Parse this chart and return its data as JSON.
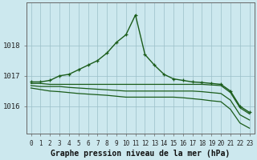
{
  "hours": [
    0,
    1,
    2,
    3,
    4,
    5,
    6,
    7,
    8,
    9,
    10,
    11,
    12,
    13,
    14,
    15,
    16,
    17,
    18,
    19,
    20,
    21,
    22,
    23
  ],
  "line_main": [
    1016.8,
    1016.8,
    1016.85,
    1017.0,
    1017.05,
    1017.2,
    1017.35,
    1017.5,
    1017.75,
    1018.1,
    1018.35,
    1019.0,
    1017.7,
    1017.35,
    1017.05,
    1016.9,
    1016.85,
    1016.8,
    1016.78,
    1016.75,
    1016.72,
    1016.5,
    1016.0,
    1015.8
  ],
  "line_flat1": [
    1016.75,
    1016.75,
    1016.72,
    1016.72,
    1016.72,
    1016.72,
    1016.72,
    1016.72,
    1016.72,
    1016.72,
    1016.72,
    1016.72,
    1016.72,
    1016.72,
    1016.72,
    1016.72,
    1016.72,
    1016.72,
    1016.72,
    1016.7,
    1016.68,
    1016.45,
    1015.95,
    1015.75
  ],
  "line_flat2": [
    1016.68,
    1016.65,
    1016.65,
    1016.65,
    1016.62,
    1016.6,
    1016.58,
    1016.56,
    1016.54,
    1016.52,
    1016.5,
    1016.5,
    1016.5,
    1016.5,
    1016.5,
    1016.5,
    1016.5,
    1016.5,
    1016.48,
    1016.45,
    1016.42,
    1016.2,
    1015.72,
    1015.55
  ],
  "line_flat3": [
    1016.6,
    1016.55,
    1016.5,
    1016.48,
    1016.45,
    1016.42,
    1016.4,
    1016.38,
    1016.36,
    1016.33,
    1016.3,
    1016.3,
    1016.3,
    1016.3,
    1016.3,
    1016.3,
    1016.28,
    1016.25,
    1016.22,
    1016.18,
    1016.15,
    1015.9,
    1015.45,
    1015.28
  ],
  "bg_color": "#cce8ee",
  "grid_color": "#9bbfc8",
  "line_color": "#1a5c1a",
  "ylabel_values": [
    1016,
    1017,
    1018
  ],
  "xlabel": "Graphe pression niveau de la mer (hPa)",
  "ylim_min": 1015.1,
  "ylim_max": 1019.4,
  "xlim_min": -0.5,
  "xlim_max": 23.5
}
